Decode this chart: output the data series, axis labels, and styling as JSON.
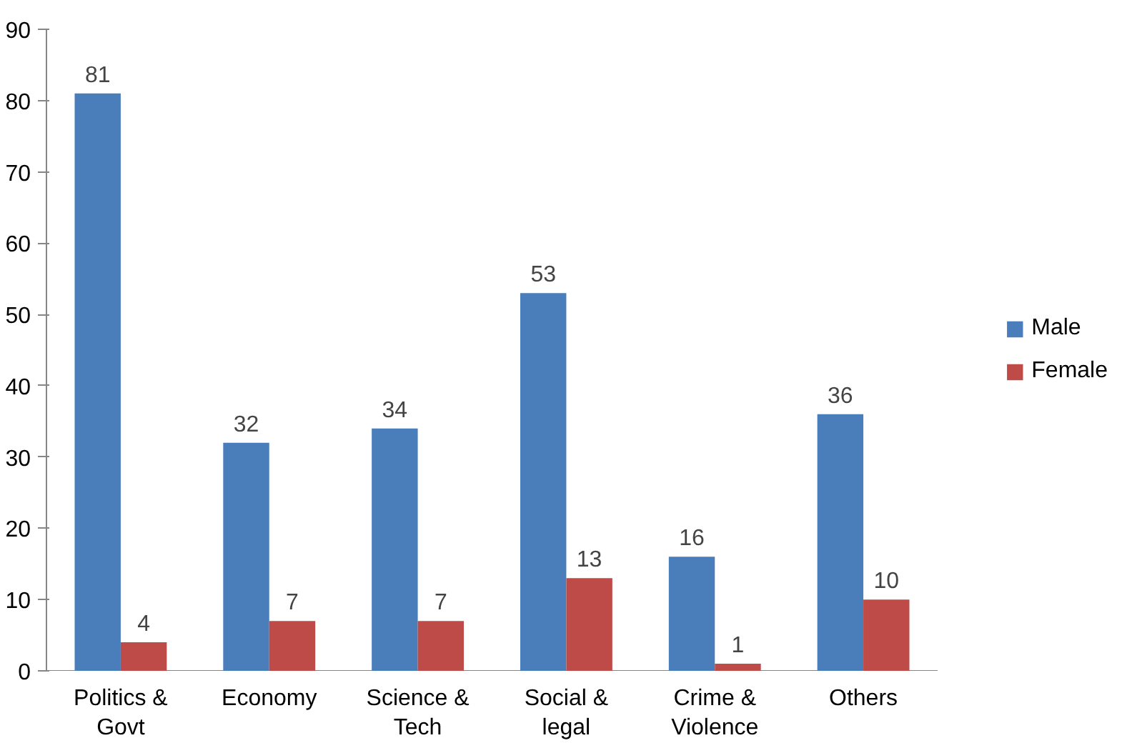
{
  "chart_data": {
    "type": "bar",
    "categories": [
      "Politics & Govt",
      "Economy",
      "Science & Tech",
      "Social & legal",
      "Crime & Violence",
      "Others"
    ],
    "series": [
      {
        "name": "Male",
        "color": "#4a7ebb",
        "values": [
          81,
          32,
          34,
          53,
          16,
          36
        ]
      },
      {
        "name": "Female",
        "color": "#be4b48",
        "values": [
          4,
          7,
          7,
          13,
          1,
          10
        ]
      }
    ],
    "ylim": [
      0,
      90
    ],
    "yticks": [
      0,
      10,
      20,
      30,
      40,
      50,
      60,
      70,
      80,
      90
    ],
    "data_labels": true,
    "legend": "right",
    "grid": false
  }
}
